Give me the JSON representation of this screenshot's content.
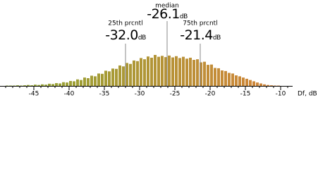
{
  "chart_data": {
    "type": "histogram",
    "bins": [
      -49,
      -48.5,
      -48,
      -47.5,
      -47,
      -46.5,
      -46,
      -45.5,
      -45,
      -44.5,
      -44,
      -43.5,
      -43,
      -42.5,
      -42,
      -41.5,
      -41,
      -40.5,
      -40,
      -39.5,
      -39,
      -38.5,
      -38,
      -37.5,
      -37,
      -36.5,
      -36,
      -35.5,
      -35,
      -34.5,
      -34,
      -33.5,
      -33,
      -32.5,
      -32,
      -31.5,
      -31,
      -30.5,
      -30,
      -29.5,
      -29,
      -28.5,
      -28,
      -27.5,
      -27,
      -26.5,
      -26,
      -25.5,
      -25,
      -24.5,
      -24,
      -23.5,
      -23,
      -22.5,
      -22,
      -21.5,
      -21,
      -20.5,
      -20,
      -19.5,
      -19,
      -18.5,
      -18,
      -17.5,
      -17,
      -16.5,
      -16,
      -15.5,
      -15,
      -14.5,
      -14,
      -13.5,
      -13,
      -12.5,
      -12,
      -11.5,
      -11,
      -10.5,
      -10
    ],
    "values": [
      1,
      1,
      1,
      2,
      1,
      2,
      3,
      2,
      4,
      3,
      5,
      4,
      7,
      6,
      9,
      8,
      12,
      11,
      16,
      15,
      21,
      19,
      27,
      25,
      33,
      31,
      40,
      39,
      49,
      47,
      56,
      55,
      66,
      63,
      74,
      71,
      82,
      80,
      90,
      86,
      95,
      91,
      100,
      94,
      97,
      93,
      98,
      92,
      96,
      90,
      94,
      88,
      91,
      84,
      86,
      76,
      78,
      68,
      69,
      58,
      57,
      50,
      48,
      42,
      40,
      34,
      31,
      27,
      23,
      19,
      15,
      11,
      8,
      5,
      3,
      2,
      1,
      1
    ],
    "colors": [
      "#8ca834",
      "#d4843a"
    ],
    "xlim": [
      -49.5,
      -7.5
    ],
    "ylim": [
      0,
      100
    ],
    "xticks": [
      -45,
      -40,
      -35,
      -30,
      -25,
      -20,
      -15,
      -10
    ],
    "xminor_ticks": [
      -49,
      -48,
      -47,
      -46,
      -45,
      -44,
      -43,
      -42,
      -41,
      -40,
      -39,
      -38,
      -37,
      -36,
      -35,
      -34,
      -33,
      -32,
      -31,
      -30,
      -29,
      -28,
      -27,
      -26,
      -25,
      -24,
      -23,
      -22,
      -21,
      -20,
      -19,
      -18,
      -17,
      -16,
      -15,
      -14,
      -13,
      -12,
      -11,
      -10,
      -9
    ],
    "xlabel": "Df, dB",
    "annotations": [
      {
        "name": "25th prcntl",
        "value": -32.0,
        "label": "-32.0",
        "unit": "dB"
      },
      {
        "name": "median",
        "value": -26.1,
        "unit": "dB"
      },
      {
        "name": "75th prcntl",
        "value": -21.4,
        "unit": "dB"
      }
    ]
  }
}
